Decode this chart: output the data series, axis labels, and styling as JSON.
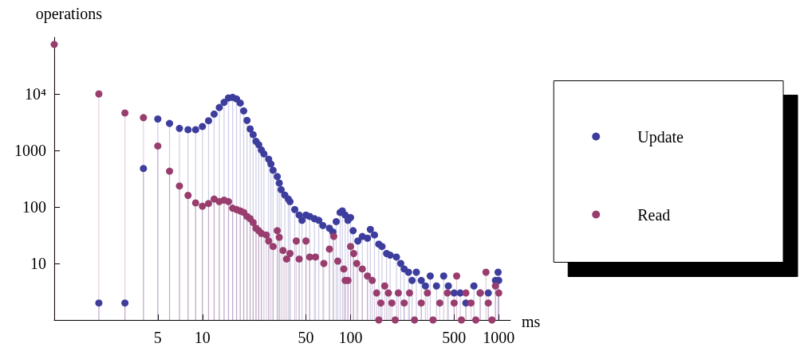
{
  "chart_data": {
    "type": "lollipop",
    "xlabel": "ms",
    "ylabel": "operations",
    "log": "xy",
    "xlim": [
      1,
      1200
    ],
    "xticks": [
      5,
      10,
      50,
      100,
      500,
      1000
    ],
    "ylim": [
      1,
      100000
    ],
    "yticks": [
      10,
      100,
      1000,
      {
        "value": 10000,
        "label": "10⁴"
      }
    ],
    "grid": false,
    "legend": "right",
    "marker": "circle",
    "series": [
      {
        "name": "Update",
        "color": "#3d3d9e",
        "x": [
          2,
          3,
          4,
          5,
          6,
          7,
          8,
          9,
          10,
          11,
          12,
          13,
          14,
          15,
          16,
          17,
          18,
          19,
          20,
          21,
          22,
          23,
          24,
          25,
          26,
          28,
          29,
          30,
          32,
          33,
          34,
          36,
          38,
          39,
          42,
          45,
          47,
          50,
          53,
          57,
          61,
          65,
          72,
          76,
          80,
          85,
          88,
          92,
          96,
          100,
          104,
          112,
          120,
          130,
          136,
          145,
          155,
          163,
          175,
          185,
          204,
          218,
          230,
          246,
          260,
          278,
          300,
          320,
          345,
          380,
          425,
          457,
          500,
          550,
          600,
          680,
          750,
          850,
          950,
          990,
          1000
        ],
        "values": [
          2,
          2,
          480,
          3600,
          3000,
          2450,
          2330,
          2330,
          2650,
          3350,
          4400,
          5750,
          7100,
          8500,
          8700,
          8150,
          6900,
          5000,
          3400,
          2400,
          1900,
          1450,
          1260,
          1020,
          870,
          700,
          575,
          445,
          345,
          265,
          202,
          162,
          138,
          124,
          90,
          72,
          58,
          72,
          68,
          62,
          58,
          47,
          42,
          36,
          55,
          80,
          85,
          72,
          58,
          65,
          38,
          25,
          30,
          28,
          40,
          32,
          22,
          20,
          15,
          14,
          13,
          10,
          8,
          7,
          5,
          7,
          5,
          4,
          6,
          4,
          6,
          4,
          3,
          3,
          2,
          4,
          3,
          3,
          5,
          7,
          5
        ]
      },
      {
        "name": "Read",
        "color": "#993d6e",
        "x": [
          1,
          2,
          3,
          4,
          5,
          6,
          7,
          8,
          9,
          10,
          11,
          12,
          13,
          14,
          15,
          16,
          17,
          18,
          19,
          20,
          21,
          22,
          23,
          24,
          25,
          27,
          28,
          30,
          32,
          33,
          35,
          37,
          39,
          43,
          45,
          50,
          53,
          58,
          66,
          72,
          77,
          82,
          90,
          92,
          96,
          100,
          105,
          110,
          120,
          130,
          140,
          150,
          155,
          160,
          170,
          180,
          190,
          200,
          210,
          230,
          250,
          270,
          300,
          330,
          360,
          400,
          450,
          500,
          520,
          560,
          600,
          650,
          700,
          750,
          820,
          850,
          900,
          950,
          1000
        ],
        "values": [
          75000,
          10000,
          4600,
          3800,
          1200,
          430,
          235,
          160,
          118,
          103,
          115,
          138,
          124,
          132,
          124,
          95,
          90,
          85,
          80,
          68,
          62,
          53,
          42,
          38,
          34,
          32,
          25,
          20,
          38,
          29,
          17,
          12,
          15,
          25,
          12,
          25,
          13,
          13,
          10,
          18,
          30,
          11,
          8,
          5,
          5,
          20,
          15,
          10,
          8,
          6,
          5,
          3,
          1,
          2,
          4,
          3,
          2,
          1,
          3,
          2,
          3,
          1,
          2,
          3,
          1,
          2,
          3,
          2,
          6,
          1,
          3,
          2,
          1,
          3,
          7,
          2,
          1,
          4,
          3
        ]
      }
    ]
  }
}
